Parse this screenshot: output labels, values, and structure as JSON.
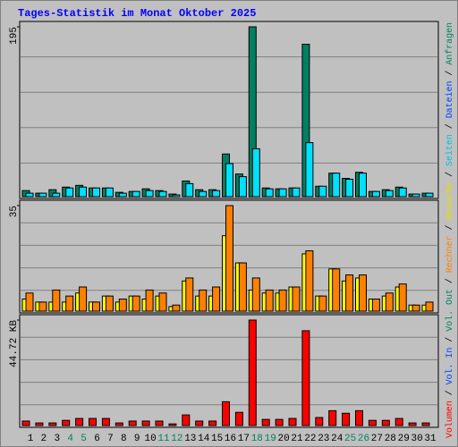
{
  "chart_data": [
    {
      "type": "bar",
      "title": "Tages-Statistik im Monat Oktober 2025",
      "ylim": [
        0,
        195
      ],
      "yticks": [
        195
      ],
      "series": [
        {
          "color": "#008060",
          "values": [
            7,
            4,
            8,
            11,
            13,
            10,
            10,
            5,
            6,
            9,
            7,
            3,
            18,
            8,
            8,
            49,
            26,
            195,
            10,
            9,
            10,
            175,
            12,
            27,
            21,
            28,
            6,
            8,
            11,
            3,
            4
          ]
        },
        {
          "color": "#00e0ff",
          "values": [
            4,
            4,
            4,
            10,
            11,
            10,
            10,
            4,
            6,
            7,
            6,
            2,
            15,
            6,
            7,
            38,
            23,
            55,
            9,
            9,
            10,
            62,
            12,
            27,
            20,
            27,
            6,
            7,
            10,
            3,
            4
          ]
        }
      ]
    },
    {
      "type": "bar",
      "ylim": [
        0,
        35
      ],
      "yticks": [
        35
      ],
      "series": [
        {
          "color": "#ffff00",
          "values": [
            4,
            3,
            3,
            3,
            6,
            3,
            5,
            3,
            5,
            4,
            5,
            1.5,
            10,
            5,
            5,
            25,
            16,
            7,
            6,
            6,
            8,
            19,
            5,
            14,
            10,
            11,
            4,
            5,
            8,
            2,
            2
          ]
        },
        {
          "color": "#ff8000",
          "values": [
            6,
            3,
            7,
            5,
            8,
            3,
            5,
            4,
            5,
            7,
            6,
            2,
            11,
            7,
            8,
            35,
            16,
            11,
            7,
            7,
            8,
            20,
            5,
            14,
            12,
            12,
            4,
            6,
            9,
            2,
            3
          ]
        }
      ]
    },
    {
      "type": "bar",
      "ylim": [
        0,
        44.72
      ],
      "yticks": [
        {
          "value": 44.72,
          "label": "44.72 KB"
        }
      ],
      "categories": [
        "1",
        "2",
        "3",
        "4",
        "5",
        "6",
        "7",
        "8",
        "9",
        "10",
        "11",
        "12",
        "13",
        "14",
        "15",
        "16",
        "17",
        "18",
        "19",
        "20",
        "21",
        "22",
        "23",
        "24",
        "25",
        "26",
        "27",
        "28",
        "29",
        "30",
        "31"
      ],
      "weekend": [
        false,
        false,
        false,
        true,
        true,
        false,
        false,
        false,
        false,
        false,
        true,
        true,
        false,
        false,
        false,
        false,
        false,
        true,
        true,
        false,
        false,
        false,
        false,
        false,
        true,
        true,
        false,
        false,
        false,
        false,
        false
      ],
      "weekend_color": "#008060",
      "weekday_color": "#000000",
      "series": [
        {
          "color": "#ff0000",
          "values": [
            1.9,
            1.1,
            1.1,
            2.2,
            3.0,
            3.0,
            3.0,
            1.1,
            1.9,
            1.9,
            1.9,
            0.7,
            4.5,
            1.9,
            1.9,
            10.1,
            5.6,
            44.72,
            2.6,
            2.6,
            3.0,
            40.2,
            3.4,
            6.3,
            5.2,
            6.3,
            2.2,
            2.2,
            3.0,
            1.1,
            1.1
          ]
        }
      ]
    }
  ],
  "legend_separator": " / ",
  "legend": [
    {
      "name": "Volumen",
      "color": "#ff0000"
    },
    {
      "name": "Vol. In",
      "color": "#0040ff"
    },
    {
      "name": "Vol. Out",
      "color": "#008060"
    },
    {
      "name": "Rechner",
      "color": "#ff8000"
    },
    {
      "name": "Besuche",
      "color": "#e0e000"
    },
    {
      "name": "Seiten",
      "color": "#00c0e0"
    },
    {
      "name": "Dateien",
      "color": "#0040ff"
    },
    {
      "name": "Anfragen",
      "color": "#008060"
    }
  ]
}
